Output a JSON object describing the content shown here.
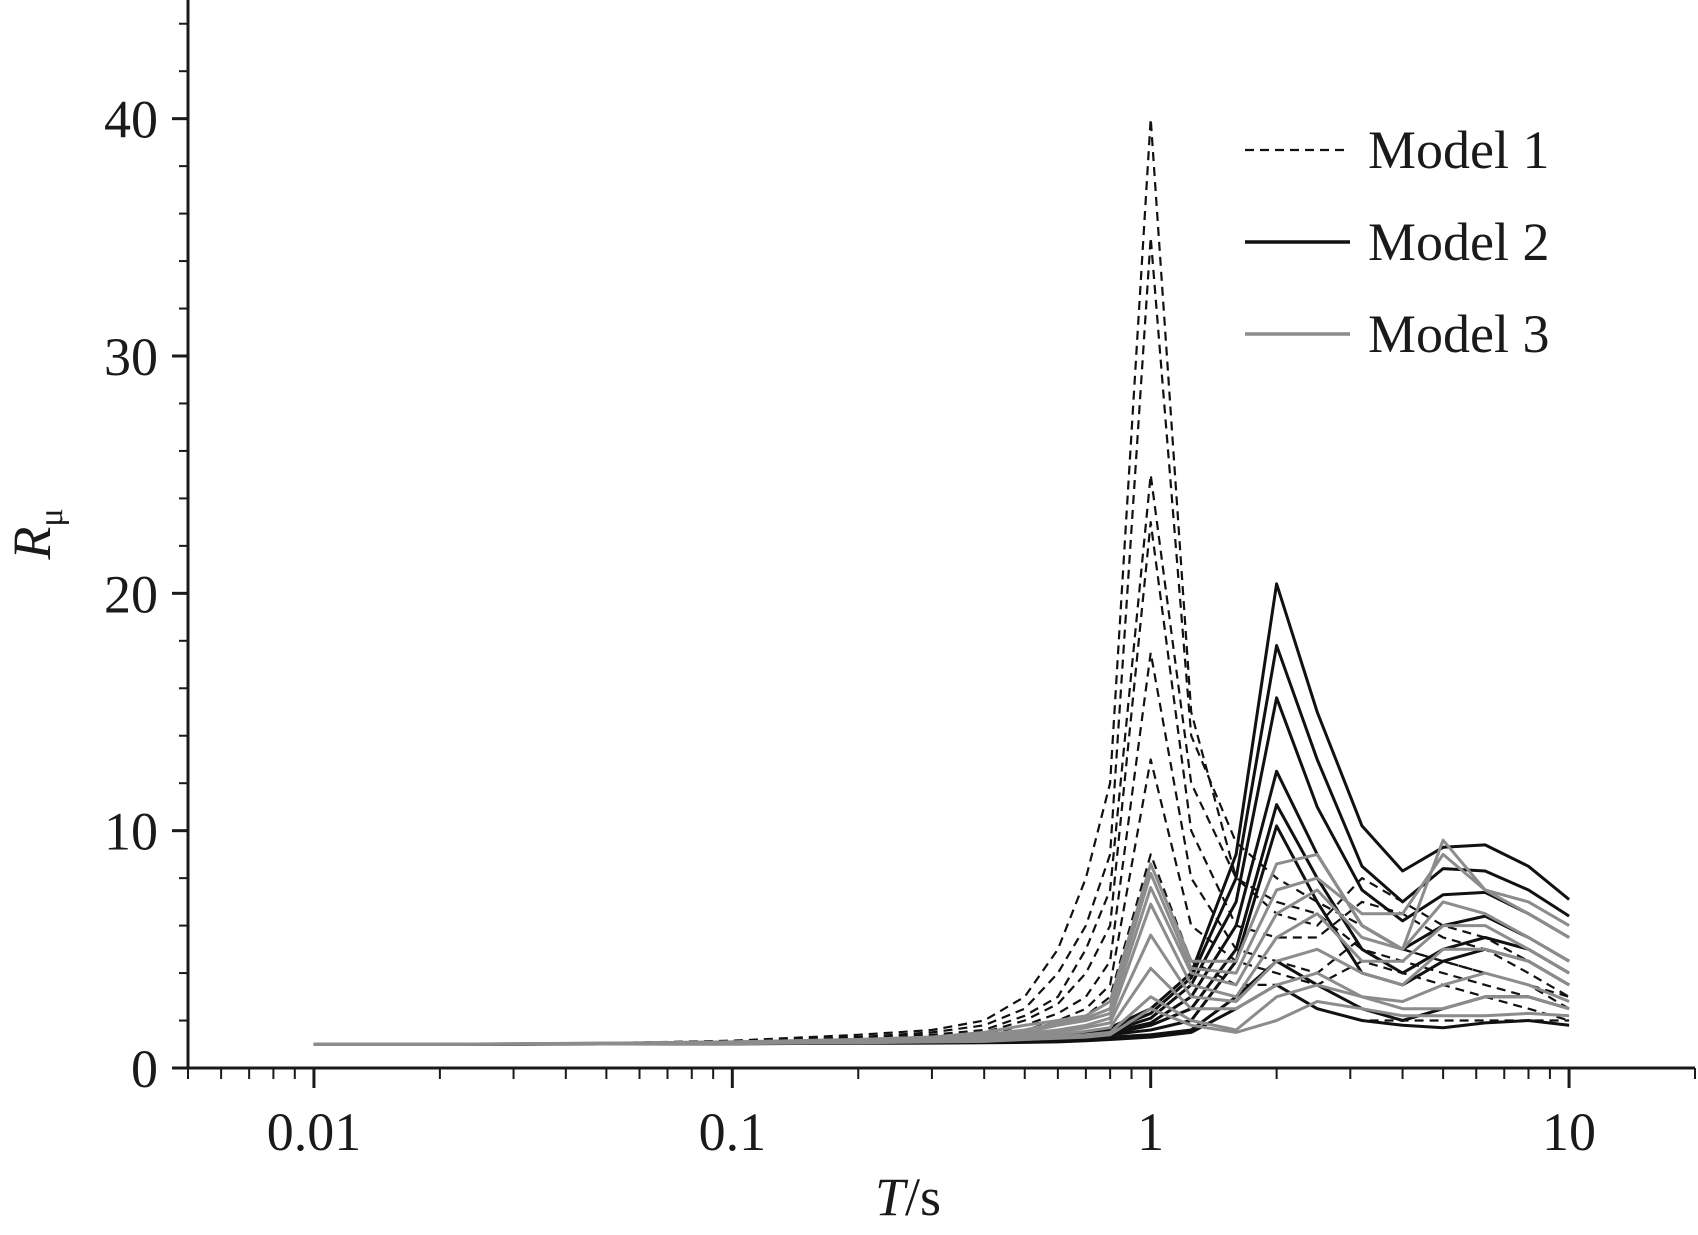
{
  "chart_data": {
    "type": "line",
    "title": "",
    "xlabel": {
      "italic": "T",
      "rest": "/s"
    },
    "ylabel": {
      "italic": "R",
      "sub": "μ"
    },
    "xscale": "log",
    "xlim": [
      0.005,
      20
    ],
    "ylim": [
      0,
      45
    ],
    "x_ticks": [
      {
        "value": 0.01,
        "label": "0.01"
      },
      {
        "value": 0.1,
        "label": "0.1"
      },
      {
        "value": 1,
        "label": "1"
      },
      {
        "value": 10,
        "label": "10"
      }
    ],
    "y_ticks": [
      {
        "value": 0,
        "label": "0"
      },
      {
        "value": 10,
        "label": "10"
      },
      {
        "value": 20,
        "label": "20"
      },
      {
        "value": 30,
        "label": "30"
      },
      {
        "value": 40,
        "label": "40"
      }
    ],
    "grid": false,
    "legend_position": "top-right",
    "x": [
      0.01,
      0.02,
      0.05,
      0.1,
      0.2,
      0.3,
      0.4,
      0.5,
      0.6,
      0.7,
      0.8,
      1.0,
      1.25,
      1.6,
      2.0,
      2.5,
      3.2,
      4.0,
      5.0,
      6.3,
      8.0,
      10.0
    ],
    "series": [
      {
        "name": "Model 1",
        "style": "dashed",
        "color": "#111111",
        "lines": [
          [
            1,
            1,
            1.05,
            1.15,
            1.4,
            1.6,
            2.0,
            3.0,
            5.0,
            8.0,
            12.0,
            40.0,
            15.0,
            8.0,
            7.0,
            6.5,
            5.0,
            4.5,
            4.0,
            3.5,
            3.0,
            2.5
          ],
          [
            1,
            1,
            1.05,
            1.1,
            1.3,
            1.5,
            1.8,
            2.5,
            4.0,
            6.0,
            9.0,
            35.0,
            14.0,
            9.5,
            8.0,
            7.0,
            6.0,
            5.0,
            4.5,
            4.0,
            3.5,
            3.0
          ],
          [
            1,
            1,
            1.05,
            1.1,
            1.3,
            1.4,
            1.6,
            2.2,
            3.0,
            5.0,
            7.5,
            25.0,
            12.0,
            8.0,
            6.5,
            6.0,
            8.0,
            7.0,
            6.0,
            5.5,
            4.5,
            3.5
          ],
          [
            1,
            1,
            1.04,
            1.1,
            1.2,
            1.35,
            1.5,
            2.0,
            2.7,
            4.0,
            6.0,
            23.0,
            10.0,
            6.0,
            5.5,
            5.5,
            7.0,
            6.5,
            5.5,
            5.0,
            4.0,
            3.0
          ],
          [
            1,
            1,
            1.03,
            1.08,
            1.2,
            1.3,
            1.4,
            1.8,
            2.3,
            3.0,
            4.5,
            17.5,
            8.0,
            5.0,
            4.5,
            4.0,
            5.5,
            5.0,
            4.5,
            4.0,
            3.5,
            2.5
          ],
          [
            1,
            1,
            1.03,
            1.07,
            1.15,
            1.25,
            1.35,
            1.6,
            2.0,
            2.5,
            3.5,
            13.0,
            6.0,
            4.5,
            4.0,
            3.5,
            4.5,
            4.0,
            3.5,
            3.0,
            2.5,
            2.0
          ],
          [
            1,
            1,
            1.02,
            1.06,
            1.1,
            1.2,
            1.3,
            1.5,
            1.8,
            2.2,
            3.0,
            9.0,
            4.5,
            3.5,
            3.5,
            2.5,
            2.0,
            2.0,
            2.0,
            2.0,
            2.0,
            2.0
          ]
        ]
      },
      {
        "name": "Model 2",
        "style": "solid",
        "color": "#111111",
        "lines": [
          [
            1,
            1,
            1.02,
            1.05,
            1.1,
            1.15,
            1.2,
            1.3,
            1.4,
            1.5,
            1.7,
            2.5,
            4.0,
            9.0,
            20.4,
            15.0,
            10.2,
            8.3,
            9.3,
            9.4,
            8.5,
            7.1
          ],
          [
            1,
            1,
            1.02,
            1.05,
            1.1,
            1.15,
            1.2,
            1.3,
            1.4,
            1.5,
            1.6,
            2.3,
            3.8,
            8.0,
            17.8,
            13.0,
            8.5,
            7.0,
            8.4,
            8.3,
            7.5,
            6.4
          ],
          [
            1,
            1,
            1.02,
            1.05,
            1.1,
            1.12,
            1.18,
            1.25,
            1.35,
            1.45,
            1.55,
            2.1,
            3.5,
            7.0,
            15.6,
            11.0,
            7.5,
            6.2,
            7.3,
            7.4,
            6.5,
            5.5
          ],
          [
            1,
            1,
            1.02,
            1.04,
            1.08,
            1.1,
            1.15,
            1.2,
            1.3,
            1.4,
            1.5,
            1.9,
            3.0,
            6.0,
            12.5,
            9.0,
            6.0,
            5.0,
            6.0,
            6.4,
            5.5,
            4.5
          ],
          [
            1,
            1,
            1.02,
            1.04,
            1.07,
            1.1,
            1.12,
            1.2,
            1.25,
            1.35,
            1.45,
            1.8,
            2.5,
            5.0,
            11.1,
            8.0,
            5.0,
            4.0,
            5.0,
            5.5,
            5.0,
            4.0
          ],
          [
            1,
            1,
            1.01,
            1.03,
            1.06,
            1.08,
            1.1,
            1.15,
            1.2,
            1.3,
            1.4,
            1.6,
            2.0,
            4.5,
            10.2,
            7.0,
            4.0,
            3.5,
            4.5,
            5.0,
            4.5,
            3.5
          ],
          [
            1,
            1,
            1.01,
            1.02,
            1.05,
            1.07,
            1.08,
            1.1,
            1.15,
            1.2,
            1.3,
            1.4,
            1.6,
            3.0,
            4.5,
            3.5,
            2.5,
            2.0,
            2.5,
            3.0,
            3.0,
            2.5
          ],
          [
            1,
            1,
            1.01,
            1.02,
            1.04,
            1.05,
            1.06,
            1.08,
            1.1,
            1.15,
            1.2,
            1.3,
            1.5,
            2.5,
            3.5,
            2.5,
            2.0,
            1.8,
            1.7,
            1.9,
            2.0,
            1.8
          ]
        ]
      },
      {
        "name": "Model 3",
        "style": "solid",
        "color": "#8c8c8c",
        "lines": [
          [
            1,
            1,
            1.05,
            1.1,
            1.2,
            1.3,
            1.5,
            1.8,
            2.0,
            2.2,
            2.8,
            8.6,
            4.5,
            4.5,
            8.6,
            9.0,
            6.0,
            5.0,
            9.6,
            7.5,
            7.0,
            6.0
          ],
          [
            1,
            1,
            1.04,
            1.1,
            1.2,
            1.3,
            1.4,
            1.6,
            1.9,
            2.1,
            2.5,
            8.2,
            4.2,
            4.0,
            7.5,
            8.0,
            6.5,
            6.5,
            9.0,
            7.5,
            6.5,
            5.5
          ],
          [
            1,
            1,
            1.04,
            1.08,
            1.18,
            1.25,
            1.35,
            1.5,
            1.8,
            2.0,
            2.3,
            7.6,
            4.0,
            3.5,
            6.5,
            7.5,
            5.5,
            5.0,
            7.0,
            6.5,
            5.5,
            4.5
          ],
          [
            1,
            1,
            1.03,
            1.07,
            1.15,
            1.2,
            1.3,
            1.45,
            1.6,
            1.8,
            2.1,
            6.9,
            3.5,
            3.0,
            5.5,
            6.5,
            4.5,
            4.5,
            6.0,
            6.0,
            5.0,
            4.0
          ],
          [
            1,
            1,
            1.03,
            1.06,
            1.12,
            1.18,
            1.25,
            1.4,
            1.5,
            1.7,
            1.9,
            5.6,
            3.0,
            2.8,
            4.5,
            5.0,
            4.0,
            3.5,
            5.0,
            5.0,
            4.5,
            3.5
          ],
          [
            1,
            1,
            1.02,
            1.05,
            1.1,
            1.15,
            1.2,
            1.3,
            1.4,
            1.55,
            1.7,
            4.2,
            2.5,
            2.5,
            3.5,
            4.0,
            3.0,
            2.8,
            3.5,
            4.0,
            3.5,
            2.8
          ],
          [
            1,
            1,
            1.02,
            1.04,
            1.08,
            1.12,
            1.15,
            1.25,
            1.3,
            1.4,
            1.5,
            3.0,
            2.0,
            1.6,
            3.0,
            3.5,
            3.0,
            2.5,
            2.5,
            3.0,
            3.0,
            2.5
          ],
          [
            1,
            1,
            1.01,
            1.03,
            1.06,
            1.1,
            1.12,
            1.2,
            1.25,
            1.3,
            1.4,
            2.5,
            1.8,
            1.5,
            2.0,
            2.8,
            2.5,
            2.2,
            2.2,
            2.2,
            2.3,
            2.2
          ]
        ]
      }
    ]
  }
}
